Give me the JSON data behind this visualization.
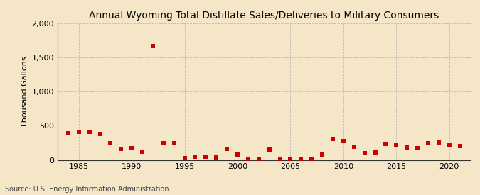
{
  "title": "Annual Wyoming Total Distillate Sales/Deliveries to Military Consumers",
  "ylabel": "Thousand Gallons",
  "source": "Source: U.S. Energy Information Administration",
  "background_color": "#f5e6c8",
  "marker_color": "#cc0000",
  "xlim": [
    1983,
    2022
  ],
  "ylim": [
    0,
    2000
  ],
  "yticks": [
    0,
    500,
    1000,
    1500,
    2000
  ],
  "xticks": [
    1985,
    1990,
    1995,
    2000,
    2005,
    2010,
    2015,
    2020
  ],
  "years": [
    1984,
    1985,
    1986,
    1987,
    1988,
    1989,
    1990,
    1991,
    1992,
    1993,
    1994,
    1995,
    1996,
    1997,
    1998,
    1999,
    2000,
    2001,
    2002,
    2003,
    2004,
    2005,
    2006,
    2007,
    2008,
    2009,
    2010,
    2011,
    2012,
    2013,
    2014,
    2015,
    2016,
    2017,
    2018,
    2019,
    2020,
    2021
  ],
  "values": [
    390,
    415,
    415,
    375,
    240,
    165,
    175,
    120,
    1670,
    245,
    240,
    30,
    45,
    50,
    35,
    160,
    75,
    10,
    5,
    155,
    10,
    10,
    5,
    5,
    80,
    310,
    275,
    195,
    100,
    105,
    235,
    215,
    185,
    175,
    240,
    250,
    210,
    200
  ],
  "title_fontsize": 10,
  "ylabel_fontsize": 8,
  "tick_labelsize": 8,
  "source_fontsize": 7
}
